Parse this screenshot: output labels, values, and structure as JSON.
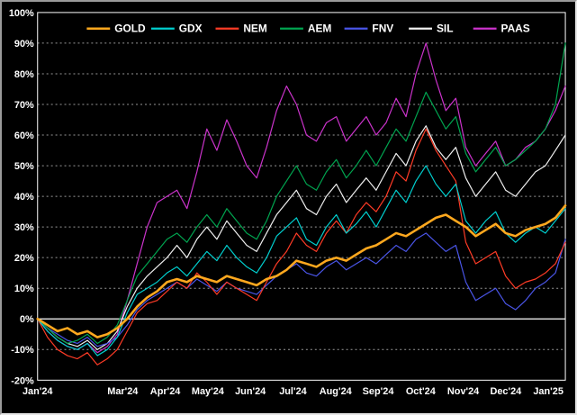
{
  "frame": {
    "bg": "#000000",
    "plot_border": "#ffffff",
    "grid_color": "#999999",
    "zero_line_color": "#ffffff",
    "text_color": "#ffffff"
  },
  "chart_data": {
    "type": "line",
    "title": "",
    "xlabel": "",
    "ylabel": "",
    "grid": "horizontal-dashed",
    "legend_position": "top-inside",
    "ylim": [
      -20,
      100
    ],
    "y_tick_step": 10,
    "y_tick_labels": [
      "100%",
      "90%",
      "80%",
      "70%",
      "60%",
      "50%",
      "40%",
      "30%",
      "20%",
      "10%",
      "0%",
      "-10%",
      "-20%"
    ],
    "x_domain_months": [
      0,
      12.4
    ],
    "x_ticks": [
      {
        "label": "Jan'24",
        "month": 0
      },
      {
        "label": "Mar'24",
        "month": 2
      },
      {
        "label": "Apr'24",
        "month": 3
      },
      {
        "label": "May'24",
        "month": 4
      },
      {
        "label": "Jun'24",
        "month": 5
      },
      {
        "label": "Jul'24",
        "month": 6
      },
      {
        "label": "Aug'24",
        "month": 7
      },
      {
        "label": "Sep'24",
        "month": 8
      },
      {
        "label": "Oct'24",
        "month": 9
      },
      {
        "label": "Nov'24",
        "month": 10
      },
      {
        "label": "Dec'24",
        "month": 11
      },
      {
        "label": "Jan'25",
        "month": 12
      }
    ],
    "x_resolution": "weekly, evenly spaced across x_domain_months",
    "unit": "percent change",
    "series": [
      {
        "name": "GOLD",
        "color": "#ffa81e",
        "width": 2.6,
        "values": [
          0,
          -2,
          -4,
          -3,
          -5,
          -4,
          -6,
          -5,
          -3,
          0,
          4,
          7,
          9,
          12,
          13,
          12,
          14,
          13,
          12,
          14,
          13,
          12,
          11,
          13,
          14,
          16,
          19,
          18,
          17,
          19,
          20,
          19,
          21,
          23,
          24,
          26,
          28,
          27,
          29,
          31,
          33,
          34,
          32,
          30,
          27,
          29,
          31,
          28,
          27,
          29,
          30,
          31,
          33,
          37
        ]
      },
      {
        "name": "GDX",
        "color": "#00cfcf",
        "width": 1.2,
        "values": [
          0,
          -4,
          -7,
          -9,
          -10,
          -8,
          -12,
          -10,
          -6,
          2,
          8,
          10,
          12,
          15,
          17,
          14,
          18,
          22,
          19,
          24,
          20,
          17,
          15,
          20,
          27,
          30,
          33,
          26,
          24,
          30,
          34,
          28,
          31,
          35,
          30,
          36,
          42,
          38,
          45,
          50,
          44,
          40,
          44,
          32,
          28,
          32,
          35,
          28,
          25,
          28,
          30,
          28,
          32,
          36
        ]
      },
      {
        "name": "NEM",
        "color": "#ff3b26",
        "width": 1.2,
        "values": [
          0,
          -6,
          -10,
          -12,
          -13,
          -11,
          -15,
          -13,
          -10,
          -4,
          2,
          5,
          6,
          9,
          12,
          10,
          15,
          12,
          8,
          12,
          10,
          8,
          6,
          12,
          18,
          22,
          28,
          24,
          22,
          28,
          32,
          28,
          34,
          38,
          35,
          40,
          48,
          45,
          55,
          62,
          55,
          50,
          45,
          25,
          18,
          20,
          22,
          14,
          10,
          12,
          13,
          15,
          18,
          25
        ]
      },
      {
        "name": "AEM",
        "color": "#00a550",
        "width": 1.2,
        "values": [
          0,
          -3,
          -6,
          -8,
          -7,
          -5,
          -8,
          -6,
          -2,
          6,
          14,
          18,
          22,
          26,
          28,
          25,
          30,
          34,
          30,
          36,
          32,
          28,
          26,
          32,
          40,
          45,
          50,
          44,
          42,
          48,
          52,
          46,
          50,
          55,
          50,
          56,
          62,
          58,
          66,
          74,
          68,
          62,
          66,
          54,
          48,
          52,
          56,
          50,
          52,
          55,
          58,
          62,
          70,
          90
        ]
      },
      {
        "name": "FNV",
        "color": "#4a55e8",
        "width": 1.2,
        "values": [
          0,
          -3,
          -5,
          -7,
          -8,
          -6,
          -9,
          -8,
          -6,
          -2,
          3,
          6,
          8,
          10,
          12,
          10,
          13,
          11,
          9,
          12,
          10,
          9,
          8,
          11,
          14,
          16,
          18,
          15,
          14,
          17,
          19,
          16,
          18,
          20,
          18,
          21,
          24,
          22,
          26,
          28,
          25,
          22,
          24,
          12,
          6,
          8,
          10,
          5,
          3,
          6,
          10,
          12,
          15,
          26
        ]
      },
      {
        "name": "SIL",
        "color": "#f0f0f0",
        "width": 1.2,
        "values": [
          0,
          -3,
          -6,
          -8,
          -9,
          -7,
          -10,
          -8,
          -4,
          4,
          10,
          14,
          17,
          20,
          24,
          20,
          26,
          30,
          26,
          32,
          28,
          24,
          22,
          28,
          34,
          38,
          42,
          36,
          34,
          40,
          44,
          38,
          42,
          46,
          42,
          48,
          54,
          50,
          58,
          63,
          56,
          52,
          56,
          46,
          40,
          44,
          48,
          42,
          40,
          44,
          48,
          50,
          55,
          60
        ]
      },
      {
        "name": "PAAS",
        "color": "#cc33cc",
        "width": 1.2,
        "values": [
          0,
          -4,
          -7,
          -9,
          -10,
          -8,
          -11,
          -9,
          -5,
          6,
          18,
          30,
          38,
          40,
          42,
          36,
          48,
          62,
          55,
          65,
          58,
          50,
          46,
          56,
          68,
          76,
          70,
          60,
          58,
          64,
          66,
          58,
          62,
          66,
          60,
          64,
          72,
          66,
          80,
          90,
          78,
          68,
          72,
          56,
          50,
          54,
          58,
          50,
          52,
          56,
          58,
          62,
          68,
          76
        ]
      }
    ]
  }
}
